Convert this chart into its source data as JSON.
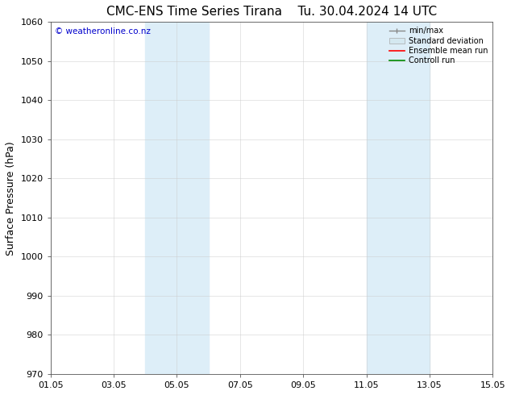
{
  "title": "CMC-ENS Time Series Tirana",
  "title2": "Tu. 30.04.2024 14 UTC",
  "ylabel": "Surface Pressure (hPa)",
  "ylim": [
    970,
    1060
  ],
  "yticks": [
    970,
    980,
    990,
    1000,
    1010,
    1020,
    1030,
    1040,
    1050,
    1060
  ],
  "xlim_start": 0,
  "xlim_end": 14,
  "xtick_positions": [
    0,
    2,
    4,
    6,
    8,
    10,
    12,
    14
  ],
  "xtick_labels": [
    "01.05",
    "03.05",
    "05.05",
    "07.05",
    "09.05",
    "11.05",
    "13.05",
    "15.05"
  ],
  "shaded_bands": [
    {
      "xstart": 3.0,
      "xend": 5.0
    },
    {
      "xstart": 10.0,
      "xend": 12.0
    }
  ],
  "shade_color": "#ddeef8",
  "background_color": "#ffffff",
  "watermark": "© weatheronline.co.nz",
  "watermark_color": "#0000cc",
  "legend_labels": [
    "min/max",
    "Standard deviation",
    "Ensemble mean run",
    "Controll run"
  ],
  "legend_line_colors": [
    "#888888",
    "#bbbbbb",
    "#ff0000",
    "#008800"
  ],
  "title_fontsize": 11,
  "axis_label_fontsize": 9,
  "tick_fontsize": 8,
  "grid_color": "#cccccc",
  "grid_alpha": 0.7
}
